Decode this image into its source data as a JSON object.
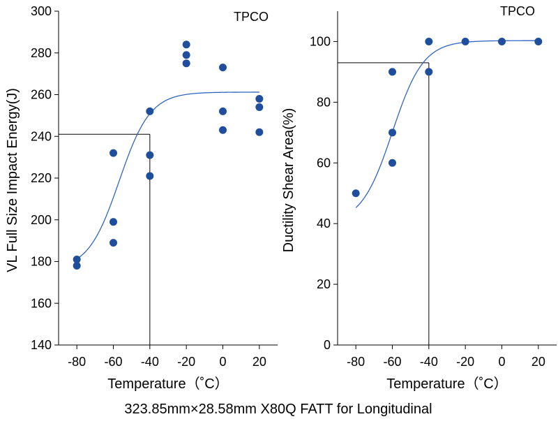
{
  "caption": "323.85mm×28.58mm X80Q FATT for Longitudinal",
  "colors": {
    "marker": "#1f4e9c",
    "curve": "#2f65c0",
    "axis": "#000000",
    "reference": "#000000"
  },
  "chart_data": [
    {
      "type": "scatter",
      "panel_label": "TPCO",
      "xlabel": "Temperature（˚C）",
      "ylabel": "VL Full Size Impact Energy(J)",
      "xlim": [
        -90,
        30
      ],
      "ylim": [
        140,
        300
      ],
      "xticks": [
        -80,
        -60,
        -40,
        -20,
        0,
        20
      ],
      "yticks": [
        140,
        160,
        180,
        200,
        220,
        240,
        260,
        280,
        300
      ],
      "grid": false,
      "points": [
        {
          "x": -80,
          "y": 181
        },
        {
          "x": -80,
          "y": 178
        },
        {
          "x": -60,
          "y": 232
        },
        {
          "x": -60,
          "y": 199
        },
        {
          "x": -60,
          "y": 189
        },
        {
          "x": -40,
          "y": 252
        },
        {
          "x": -40,
          "y": 231
        },
        {
          "x": -40,
          "y": 221
        },
        {
          "x": -20,
          "y": 284
        },
        {
          "x": -20,
          "y": 279
        },
        {
          "x": -20,
          "y": 275
        },
        {
          "x": 0,
          "y": 273
        },
        {
          "x": 0,
          "y": 252
        },
        {
          "x": 0,
          "y": 243
        },
        {
          "x": 20,
          "y": 258
        },
        {
          "x": 20,
          "y": 254
        },
        {
          "x": 20,
          "y": 242
        }
      ],
      "fit": {
        "lower": 176,
        "upper": 261.2,
        "center": -56.8,
        "scale": 8.5,
        "x_range": [
          -80,
          20
        ]
      },
      "reference": {
        "x": -40,
        "y": 241
      }
    },
    {
      "type": "scatter",
      "panel_label": "TPCO",
      "xlabel": "Temperature（˚C）",
      "ylabel": "Ductility Shear Area(%)",
      "xlim": [
        -90,
        30
      ],
      "ylim": [
        0,
        110
      ],
      "xticks": [
        -80,
        -60,
        -40,
        -20,
        0,
        20
      ],
      "yticks": [
        0,
        20,
        40,
        60,
        80,
        100
      ],
      "grid": false,
      "points": [
        {
          "x": -80,
          "y": 50
        },
        {
          "x": -60,
          "y": 90
        },
        {
          "x": -60,
          "y": 70
        },
        {
          "x": -60,
          "y": 60
        },
        {
          "x": -40,
          "y": 100
        },
        {
          "x": -40,
          "y": 90
        },
        {
          "x": -20,
          "y": 100
        },
        {
          "x": 0,
          "y": 100
        },
        {
          "x": 20,
          "y": 100
        }
      ],
      "fit": {
        "lower": 40,
        "upper": 100.3,
        "center": -60,
        "scale": 8.5,
        "x_range": [
          -80,
          20
        ]
      },
      "reference": {
        "x": -40,
        "y": 93
      }
    }
  ]
}
